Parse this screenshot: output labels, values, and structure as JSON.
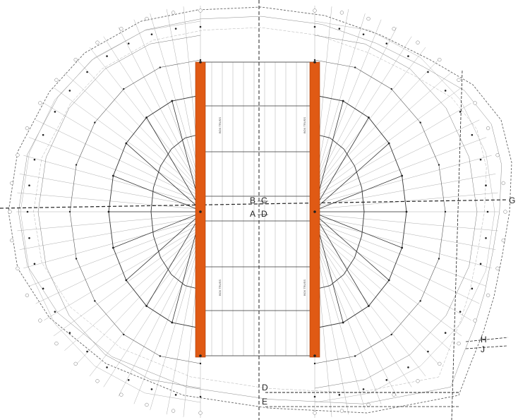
{
  "drawing": {
    "section_labels": {
      "B": "B",
      "C": "C",
      "A": "A",
      "D_upper": "D",
      "G": "G",
      "H": "H",
      "J": "J",
      "D_lower": "D",
      "E": "E"
    },
    "truss_labels": {
      "left_top": "BOX TRUSS",
      "left_bottom": "BOX TRUSS",
      "right_top": "BOX TRUSS",
      "right_bottom": "BOX TRUSS"
    },
    "colors": {
      "truss": "#e05a14",
      "line": "#333333",
      "fine": "#888888",
      "background": "#ffffff"
    }
  }
}
